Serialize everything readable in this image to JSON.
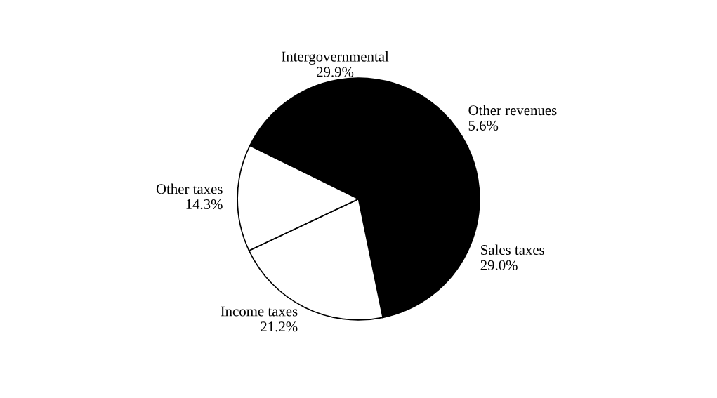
{
  "chart_data": {
    "type": "pie",
    "categories": [
      "Intergovernmental",
      "Other revenues",
      "Sales taxes",
      "Income taxes",
      "Other taxes"
    ],
    "values": [
      29.9,
      5.6,
      29.0,
      21.2,
      14.3
    ],
    "value_labels": [
      "29.9%",
      "5.6%",
      "29.0%",
      "21.2%",
      "14.3%"
    ],
    "colors": [
      "#000000",
      "#000000",
      "#000000",
      "#ffffff",
      "#ffffff"
    ]
  }
}
